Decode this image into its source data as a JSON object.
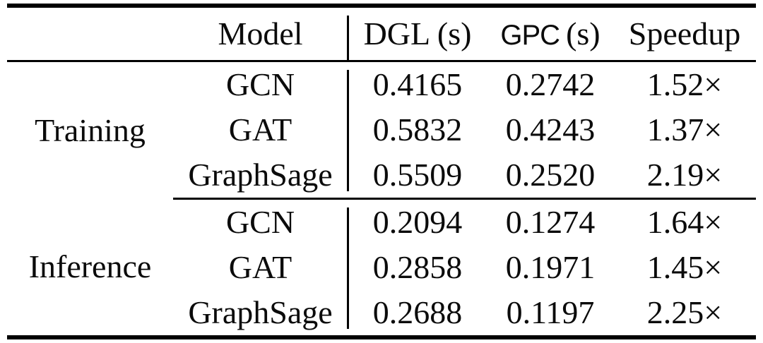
{
  "page": {
    "background": "#ffffff",
    "text_color": "#0b0b0b",
    "rule_color": "#000000"
  },
  "table": {
    "headers": {
      "category": "",
      "model": "Model",
      "dgl": "DGL (s)",
      "gpc_name": "GPC",
      "gpc_unit": "(s)",
      "speedup": "Speedup"
    },
    "sections": [
      {
        "label": "Training",
        "rows": [
          {
            "model": "GCN",
            "dgl": "0.4165",
            "gpc": "0.2742",
            "speedup": "1.52×"
          },
          {
            "model": "GAT",
            "dgl": "0.5832",
            "gpc": "0.4243",
            "speedup": "1.37×"
          },
          {
            "model": "GraphSage",
            "dgl": "0.5509",
            "gpc": "0.2520",
            "speedup": "2.19×"
          }
        ]
      },
      {
        "label": "Inference",
        "rows": [
          {
            "model": "GCN",
            "dgl": "0.2094",
            "gpc": "0.1274",
            "speedup": "1.64×"
          },
          {
            "model": "GAT",
            "dgl": "0.2858",
            "gpc": "0.1971",
            "speedup": "1.45×"
          },
          {
            "model": "GraphSage",
            "dgl": "0.2688",
            "gpc": "0.1197",
            "speedup": "2.25×"
          }
        ]
      }
    ]
  },
  "chart_data": {
    "type": "table",
    "columns": [
      "",
      "Model",
      "DGL (s)",
      "GPC (s)",
      "Speedup"
    ],
    "rows": [
      [
        "Training",
        "GCN",
        0.4165,
        0.2742,
        "1.52×"
      ],
      [
        "Training",
        "GAT",
        0.5832,
        0.4243,
        "1.37×"
      ],
      [
        "Training",
        "GraphSage",
        0.5509,
        0.252,
        "2.19×"
      ],
      [
        "Inference",
        "GCN",
        0.2094,
        0.1274,
        "1.64×"
      ],
      [
        "Inference",
        "GAT",
        0.2858,
        0.1971,
        "1.45×"
      ],
      [
        "Inference",
        "GraphSage",
        0.2688,
        0.1197,
        "2.25×"
      ]
    ]
  }
}
